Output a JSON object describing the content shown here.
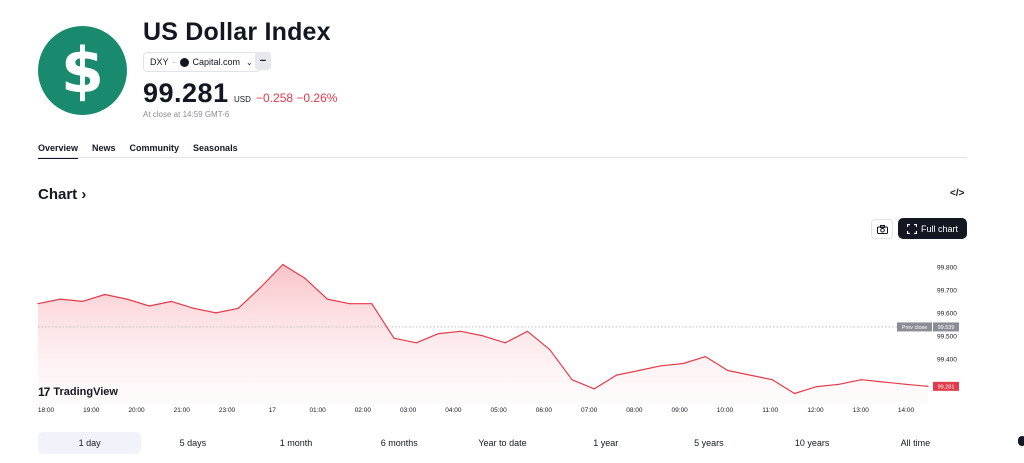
{
  "header": {
    "logo_symbol": "$",
    "logo_color": "#1a8a6f",
    "title": "US Dollar Index",
    "symbol": "DXY",
    "separator": "·",
    "source": "Capital.com",
    "minus_label": "−",
    "price": "99.281",
    "currency": "USD",
    "change": "−0.258",
    "change_pct": "−0.26%",
    "close_note": "At close at 14:59 GMT-6",
    "negative_color": "#e03c4b"
  },
  "tabs": [
    {
      "label": "Overview",
      "active": true
    },
    {
      "label": "News",
      "active": false
    },
    {
      "label": "Community",
      "active": false
    },
    {
      "label": "Seasonals",
      "active": false
    }
  ],
  "chart_section": {
    "heading": "Chart",
    "heading_arrow": "›",
    "embed_icon": "</>",
    "full_chart_label": "Full chart",
    "tradingview_label": "TradingView",
    "tradingview_mark": "17"
  },
  "chart_data": {
    "type": "area",
    "x_tick_labels": [
      "18:00",
      "19:00",
      "20:00",
      "21:00",
      "23:00",
      "17",
      "01:00",
      "02:00",
      "03:00",
      "04:00",
      "05:00",
      "06:00",
      "07:00",
      "08:00",
      "09:00",
      "10:00",
      "11:00",
      "12:00",
      "13:00",
      "14:00"
    ],
    "y_tick_labels": [
      "99.800",
      "99.700",
      "99.600",
      "99.500",
      "99.400"
    ],
    "ylim": [
      99.2,
      99.86
    ],
    "prev_close_label": "Prev close",
    "prev_close_value": 99.539,
    "prev_close_text": "99.539",
    "last_value_text": "99.281",
    "grid": false,
    "line_color": "#e03c4b",
    "x": [
      "18:00",
      "18:30",
      "19:00",
      "19:30",
      "20:00",
      "20:30",
      "21:00",
      "21:30",
      "23:00",
      "23:30",
      "17",
      "00:30",
      "01:00",
      "01:30",
      "02:00",
      "02:30",
      "03:00",
      "03:30",
      "04:00",
      "04:30",
      "05:00",
      "05:30",
      "06:00",
      "06:30",
      "07:00",
      "07:30",
      "08:00",
      "08:30",
      "09:00",
      "09:30",
      "10:00",
      "10:30",
      "11:00",
      "11:30",
      "12:00",
      "12:30",
      "13:00",
      "13:30",
      "14:00",
      "14:30",
      "14:59"
    ],
    "values": [
      99.64,
      99.66,
      99.65,
      99.68,
      99.66,
      99.63,
      99.65,
      99.62,
      99.6,
      99.62,
      99.71,
      99.81,
      99.75,
      99.66,
      99.64,
      99.64,
      99.49,
      99.47,
      99.51,
      99.52,
      99.5,
      99.47,
      99.52,
      99.44,
      99.31,
      99.27,
      99.33,
      99.35,
      99.37,
      99.38,
      99.41,
      99.35,
      99.33,
      99.31,
      99.25,
      99.28,
      99.29,
      99.31,
      99.3,
      99.29,
      99.281
    ]
  },
  "ranges": [
    {
      "label": "1 day",
      "active": true
    },
    {
      "label": "5 days",
      "active": false
    },
    {
      "label": "1 month",
      "active": false
    },
    {
      "label": "6 months",
      "active": false
    },
    {
      "label": "Year to date",
      "active": false
    },
    {
      "label": "1 year",
      "active": false
    },
    {
      "label": "5 years",
      "active": false
    },
    {
      "label": "10 years",
      "active": false
    },
    {
      "label": "All time",
      "active": false
    }
  ]
}
